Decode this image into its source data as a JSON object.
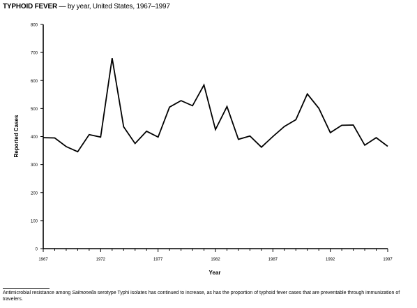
{
  "page": {
    "title_main": "TYPHOID FEVER",
    "title_rest": " — by year, United States, 1967–1997"
  },
  "footnote": {
    "before": "Antimicrobial resistance among ",
    "organism": "Salmonella",
    "after": " serotype Typhi isolates has continued to increase, as has the proportion of typhoid fever cases that are preventable through immunization of travelers."
  },
  "chart_data": {
    "type": "line",
    "title": "TYPHOID FEVER — by year, United States, 1967–1997",
    "xlabel": "Year",
    "ylabel": "Reported Cases",
    "xlim": [
      1967,
      1997
    ],
    "ylim": [
      0,
      800
    ],
    "xticks": [
      1967,
      1972,
      1977,
      1982,
      1987,
      1992,
      1997
    ],
    "yticks": [
      0,
      100,
      200,
      300,
      400,
      500,
      600,
      700,
      800
    ],
    "grid": false,
    "legend": "none",
    "line_color": "#000000",
    "x": [
      1967,
      1968,
      1969,
      1970,
      1971,
      1972,
      1973,
      1974,
      1975,
      1976,
      1977,
      1978,
      1979,
      1980,
      1981,
      1982,
      1983,
      1984,
      1985,
      1986,
      1987,
      1988,
      1989,
      1990,
      1991,
      1992,
      1993,
      1994,
      1995,
      1996,
      1997
    ],
    "y": [
      396,
      395,
      364,
      346,
      407,
      398,
      680,
      435,
      375,
      419,
      398,
      505,
      528,
      510,
      584,
      425,
      507,
      390,
      402,
      362,
      400,
      436,
      460,
      552,
      501,
      414,
      440,
      441,
      369,
      396,
      365
    ]
  }
}
